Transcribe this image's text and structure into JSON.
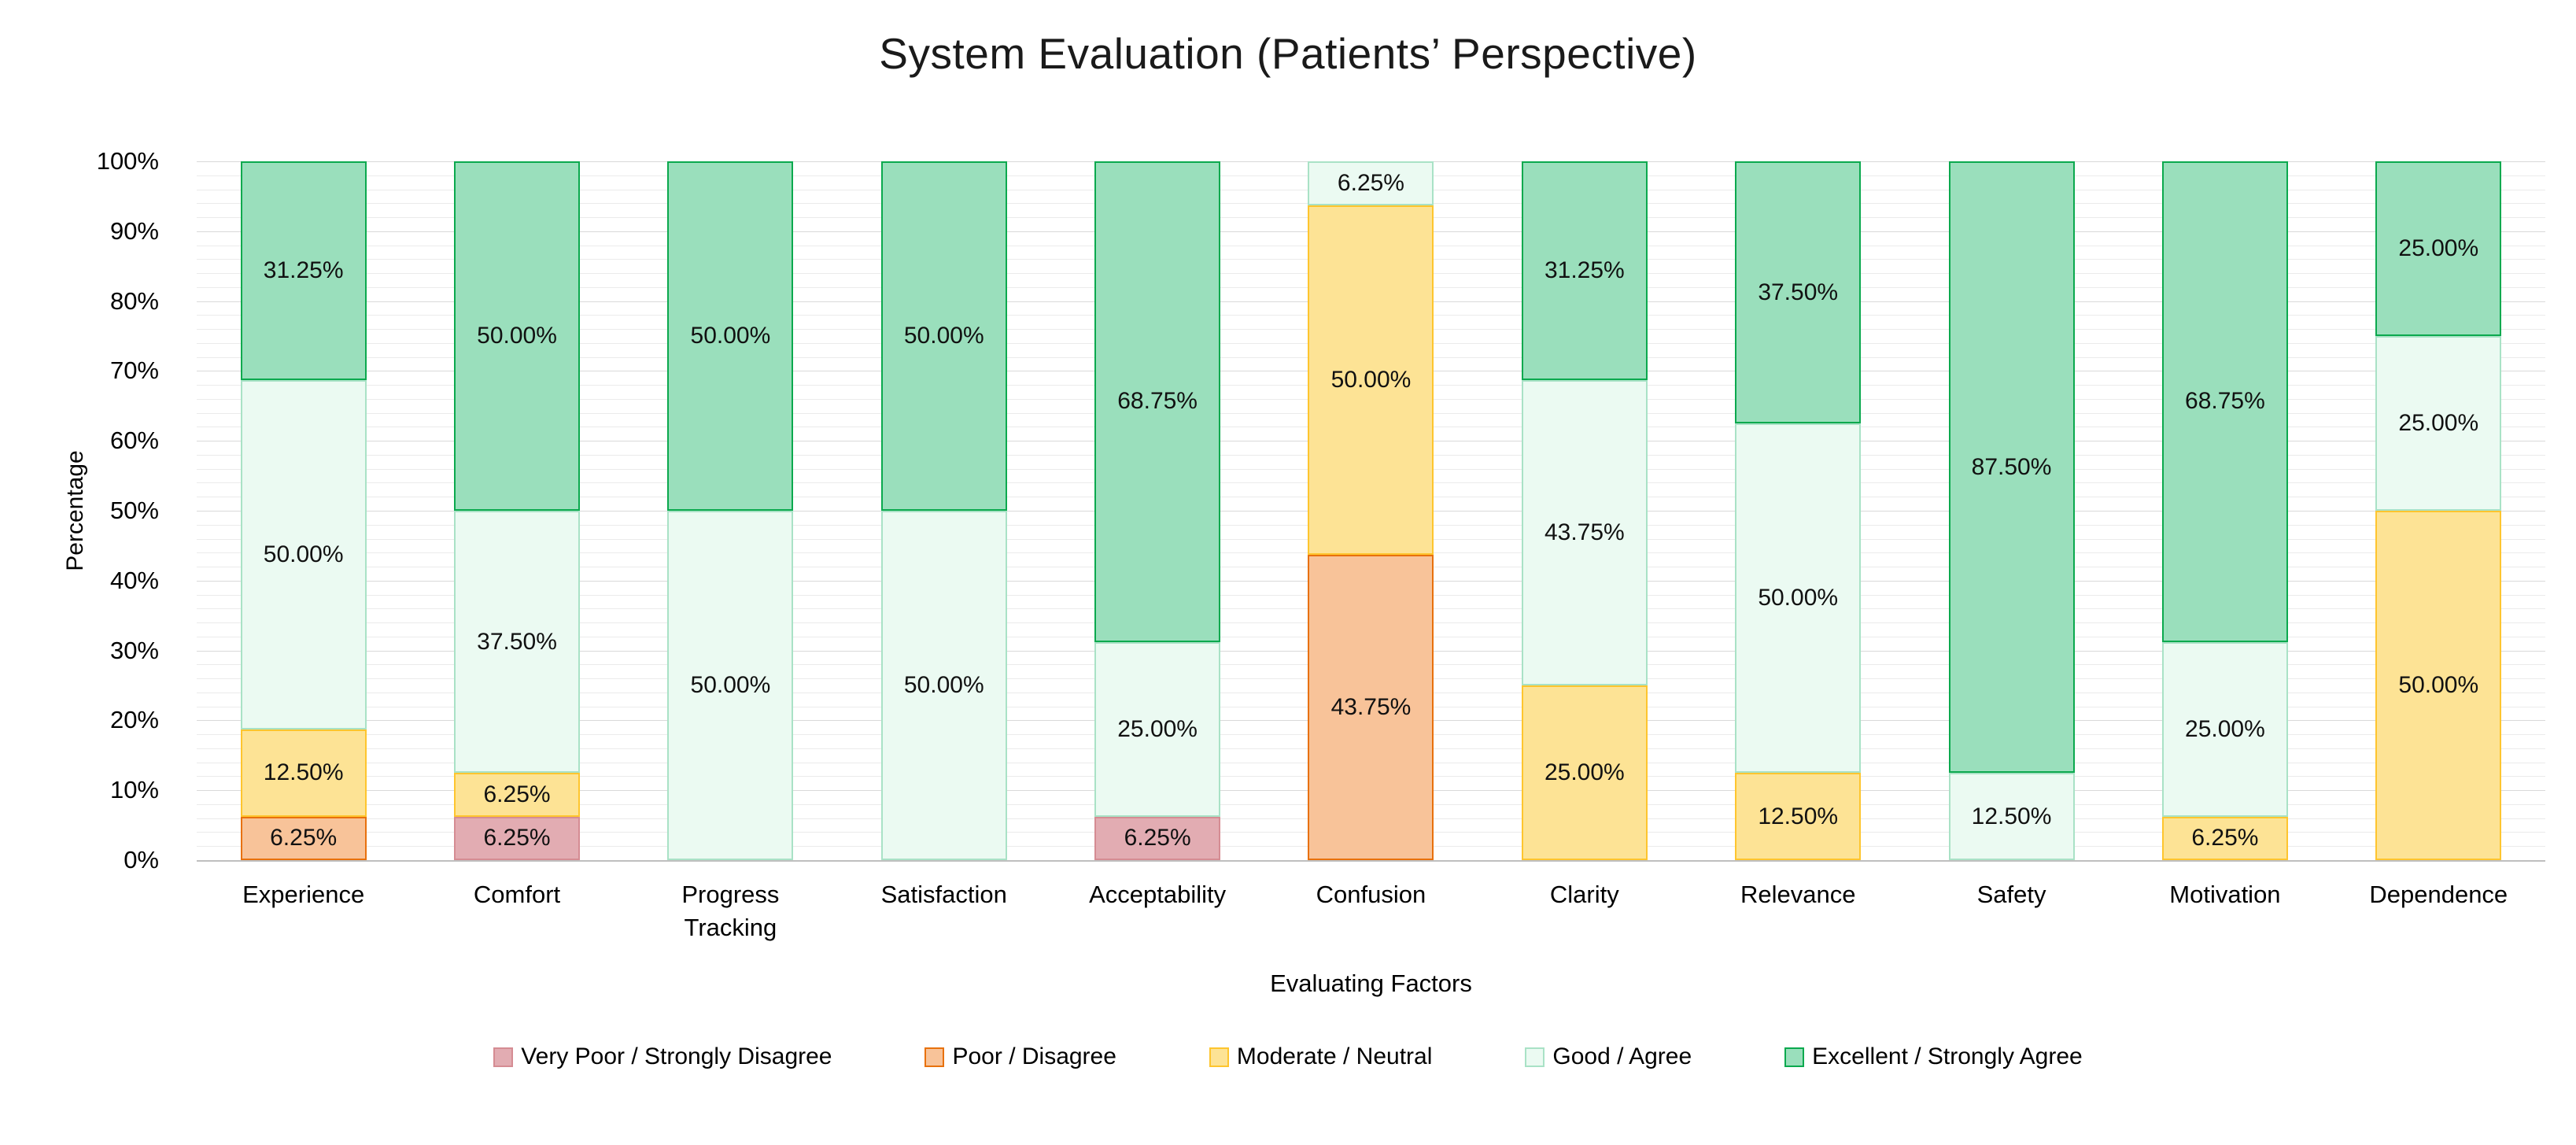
{
  "page": {
    "background": "#FFFFFF"
  },
  "chart_data": {
    "type": "stacked-bar-100",
    "title": "System Evaluation (Patients’ Perspective)",
    "xlabel": "Evaluating Factors",
    "ylabel": "Percentage",
    "ylim": [
      0,
      100
    ],
    "y_tick_step": 10,
    "y_ticks": [
      "0%",
      "10%",
      "20%",
      "30%",
      "40%",
      "50%",
      "60%",
      "70%",
      "80%",
      "90%",
      "100%"
    ],
    "grid": "horizontal minor gridlines every 2%, major every 10%",
    "legend_position": "bottom",
    "value_label_format": "0.00%",
    "categories": [
      "Experience",
      "Comfort",
      "Progress Tracking",
      "Satisfaction",
      "Acceptability",
      "Confusion",
      "Clarity",
      "Relevance",
      "Safety",
      "Motivation",
      "Dependence"
    ],
    "category_tick_labels": [
      "Experience",
      "Comfort",
      "Progress\nTracking",
      "Satisfaction",
      "Acceptability",
      "Confusion",
      "Clarity",
      "Relevance",
      "Safety",
      "Motivation",
      "Dependence"
    ],
    "series": [
      {
        "name": "Very Poor / Strongly Disagree",
        "fill": "#E2ACB2",
        "border": "#D58C93",
        "values": [
          0,
          6.25,
          0,
          0,
          6.25,
          0,
          0,
          0,
          0,
          0,
          0
        ]
      },
      {
        "name": "Poor / Disagree",
        "fill": "#F8C399",
        "border": "#E8710D",
        "values": [
          6.25,
          0,
          0,
          0,
          0,
          43.75,
          0,
          0,
          0,
          0,
          0
        ]
      },
      {
        "name": "Moderate / Neutral",
        "fill": "#FDE395",
        "border": "#FEC52E",
        "values": [
          12.5,
          6.25,
          0,
          0,
          0,
          50,
          25,
          12.5,
          0,
          6.25,
          50
        ]
      },
      {
        "name": "Good / Agree",
        "fill": "#EBFAF2",
        "border": "#A9E2C6",
        "values": [
          50,
          37.5,
          50,
          50,
          25,
          6.25,
          43.75,
          50,
          12.5,
          25,
          25
        ]
      },
      {
        "name": "Excellent / Strongly Agree",
        "fill": "#9ADFBC",
        "border": "#0BA94E",
        "values": [
          31.25,
          50,
          50,
          50,
          68.75,
          0,
          31.25,
          37.5,
          87.5,
          68.75,
          25
        ]
      }
    ],
    "axis_colors": {
      "axis_line": "#BFBFBF",
      "minor_grid": "#EBEBEB",
      "major_grid": "#D9D9D9"
    }
  }
}
